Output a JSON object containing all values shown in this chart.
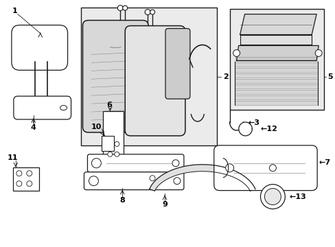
{
  "bg_color": "#ffffff",
  "line_color": "#1a1a1a",
  "label_color": "#000000",
  "shade_color": "#e8e8e8",
  "fig_width": 4.89,
  "fig_height": 3.6,
  "dpi": 100
}
